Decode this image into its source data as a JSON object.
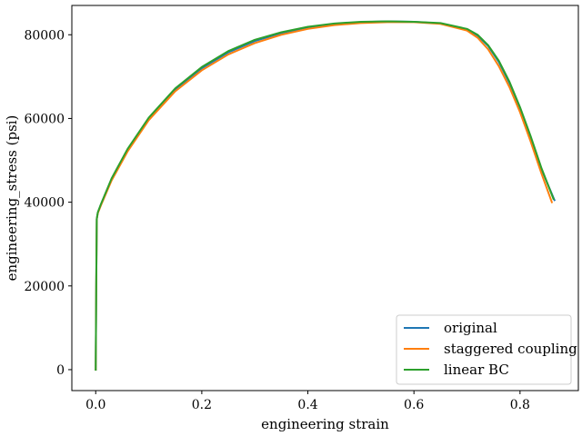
{
  "chart_data": {
    "type": "line",
    "title": "",
    "xlabel": "engineering strain",
    "ylabel": "engineering_stress (psi)",
    "xlim": [
      -0.045,
      0.91
    ],
    "ylim": [
      -5000,
      87000
    ],
    "xticks": [
      0.0,
      0.2,
      0.4,
      0.6,
      0.8
    ],
    "xtick_labels": [
      "0.0",
      "0.2",
      "0.4",
      "0.6",
      "0.8"
    ],
    "yticks": [
      0,
      20000,
      40000,
      60000,
      80000
    ],
    "ytick_labels": [
      "0",
      "20000",
      "40000",
      "60000",
      "80000"
    ],
    "grid": false,
    "legend_position": "lower-right",
    "series": [
      {
        "name": "original",
        "color": "#1f77b4",
        "x": [
          0.0,
          0.001,
          0.002,
          0.004,
          0.01,
          0.03,
          0.06,
          0.1,
          0.15,
          0.2,
          0.25,
          0.3,
          0.35,
          0.4,
          0.45,
          0.5,
          0.55,
          0.6,
          0.65,
          0.7,
          0.72,
          0.74,
          0.76,
          0.78,
          0.8,
          0.82,
          0.84,
          0.865
        ],
        "y": [
          0,
          20000,
          36000,
          37500,
          39500,
          45500,
          52500,
          60000,
          67000,
          72000,
          75800,
          78500,
          80400,
          81800,
          82600,
          83000,
          83200,
          83100,
          82700,
          81300,
          79800,
          77300,
          73500,
          68500,
          62500,
          55500,
          48000,
          40500
        ]
      },
      {
        "name": "staggered coupling",
        "color": "#ff7f0e",
        "x": [
          0.0,
          0.001,
          0.002,
          0.004,
          0.01,
          0.03,
          0.06,
          0.1,
          0.15,
          0.2,
          0.25,
          0.3,
          0.35,
          0.4,
          0.45,
          0.5,
          0.55,
          0.6,
          0.65,
          0.7,
          0.72,
          0.74,
          0.76,
          0.78,
          0.8,
          0.82,
          0.84,
          0.86
        ],
        "y": [
          0,
          20000,
          36000,
          37400,
          39300,
          45200,
          52100,
          59600,
          66500,
          71500,
          75300,
          78000,
          80000,
          81400,
          82300,
          82800,
          83000,
          83000,
          82600,
          81000,
          79300,
          76500,
          72500,
          67500,
          61500,
          54500,
          47000,
          40000
        ]
      },
      {
        "name": "linear BC",
        "color": "#2ca02c",
        "x": [
          0.0,
          0.001,
          0.002,
          0.004,
          0.01,
          0.03,
          0.06,
          0.1,
          0.15,
          0.2,
          0.25,
          0.3,
          0.35,
          0.4,
          0.45,
          0.5,
          0.55,
          0.6,
          0.65,
          0.7,
          0.72,
          0.74,
          0.76,
          0.78,
          0.8,
          0.82,
          0.84,
          0.863
        ],
        "y": [
          0,
          20000,
          36000,
          37600,
          39600,
          45700,
          52700,
          60200,
          67200,
          72300,
          76100,
          78800,
          80600,
          81900,
          82700,
          83100,
          83200,
          83100,
          82800,
          81400,
          80000,
          77500,
          73800,
          68800,
          62700,
          55800,
          48300,
          40800
        ]
      }
    ]
  }
}
